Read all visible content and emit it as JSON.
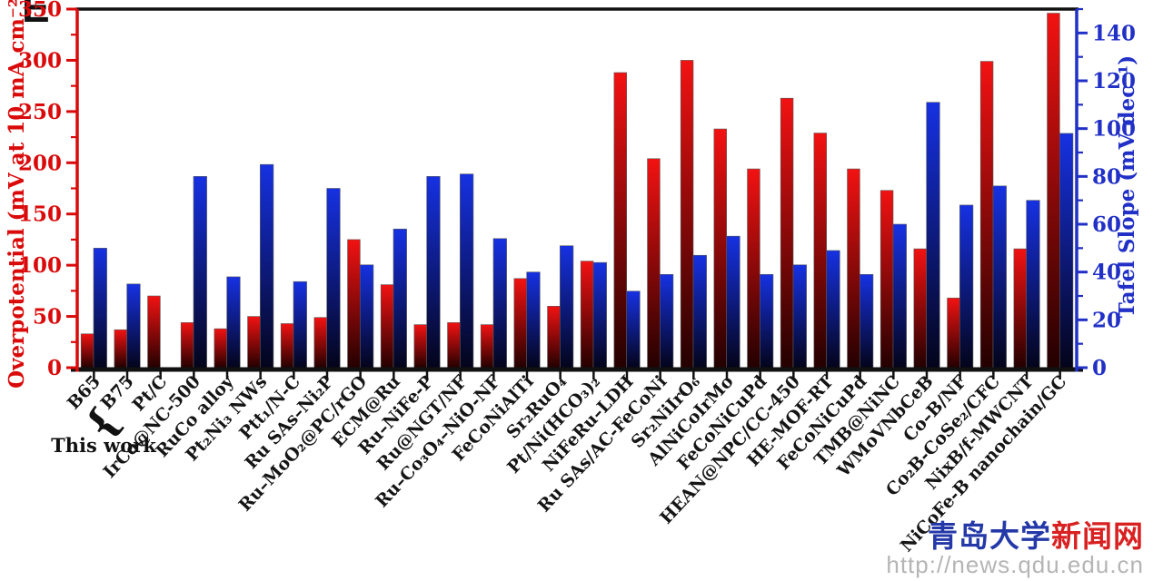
{
  "panel_label": "E",
  "watermark": {
    "site_name_blue": "青岛大学",
    "site_name_red": "新闻网",
    "url": "http://news.qdu.edu.cn"
  },
  "chart_data": {
    "type": "bar",
    "title": "",
    "annotation_this_work": "This work",
    "annotation_brace": "{",
    "legend_position": "none",
    "grid": false,
    "left_axis": {
      "label": "Overpotential (mV at 10 mA cm⁻²)",
      "min": 0,
      "max": 350,
      "major_tick": 50,
      "minor_tick": 25,
      "tick_labels": [
        0,
        50,
        100,
        150,
        200,
        250,
        300,
        350
      ],
      "color": "#da0a0a"
    },
    "right_axis": {
      "label": "Tafel Slope (mV dec⁻¹)",
      "min": 0,
      "max": 150,
      "major_tick": 20,
      "minor_tick": 10,
      "tick_labels": [
        0,
        20,
        40,
        60,
        80,
        100,
        120,
        140
      ],
      "color": "#2130c6"
    },
    "categories": [
      "B65",
      "B75",
      "Pt/C",
      "IrCo@NC-500",
      "RuCo alloy",
      "Pt₂Ni₃ NWs",
      "Ptt₁/N-C",
      "Ru SAs–Ni₂P",
      "Ru–MoO₂@PC/rGO",
      "ECM@Ru",
      "Ru–NiFe-P",
      "Ru@NGT/NF",
      "Ru–Co₃O₄–NiO-NF",
      "FeCoNiAlTi",
      "Sr₂RuO₄",
      "Pt/Ni(HCO₃)₂",
      "NiFeRu–LDH",
      "Ru SAs/AC-FeCoNi",
      "Sr₂NiIrO₆",
      "AlNiCoIrMo",
      "FeCoNiCuPd",
      "HEAN@NPC/CC-450",
      "HE-MOF-RT",
      "FeCoNiCuPd",
      "TMB@NiNC",
      "WMoVNbCeB",
      "Co–B/NF",
      "Co₂B-CoSe₂/CFC",
      "NixB/f-MWCNT",
      "NiCoFe-B nanochain/GC"
    ],
    "this_work_categories": [
      "B65",
      "B75"
    ],
    "series": [
      {
        "name": "Overpotential (mV at 10 mA cm⁻²)",
        "axis": "left",
        "color_top": "#f21212",
        "color_bottom": "#230000",
        "values": [
          33,
          37,
          70,
          44,
          38,
          50,
          43,
          49,
          125,
          81,
          42,
          44,
          42,
          87,
          60,
          104,
          288,
          204,
          300,
          233,
          194,
          263,
          229,
          194,
          173,
          116,
          68,
          299,
          116,
          346
        ]
      },
      {
        "name": "Tafel Slope (mV dec⁻¹)",
        "axis": "right",
        "color_top": "#1631e2",
        "color_bottom": "#04041a",
        "values": [
          50,
          35,
          null,
          80,
          38,
          85,
          36,
          75,
          43,
          58,
          80,
          81,
          54,
          40,
          51,
          44,
          32,
          39,
          47,
          55,
          39,
          43,
          49,
          39,
          60,
          111,
          68,
          76,
          70,
          98
        ]
      }
    ]
  }
}
